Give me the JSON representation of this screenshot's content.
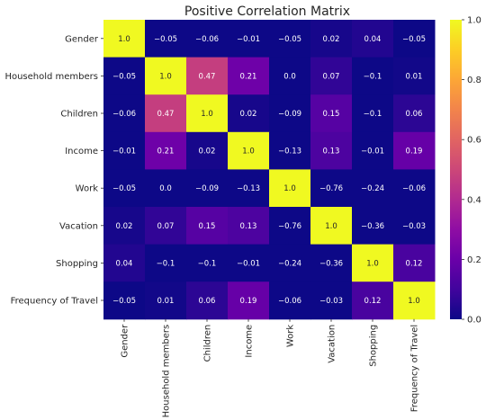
{
  "chart_data": {
    "type": "heatmap",
    "title": "Positive Correlation Matrix",
    "xlabel": "",
    "ylabel": "",
    "categories": [
      "Gender",
      "Household members",
      "Children",
      "Income",
      "Work",
      "Vacation",
      "Shopping",
      "Frequency of Travel"
    ],
    "values": [
      [
        1.0,
        -0.05,
        -0.06,
        -0.01,
        -0.05,
        0.02,
        0.04,
        -0.05
      ],
      [
        -0.05,
        1.0,
        0.47,
        0.21,
        0.0,
        0.07,
        -0.1,
        0.01
      ],
      [
        -0.06,
        0.47,
        1.0,
        0.02,
        -0.09,
        0.15,
        -0.1,
        0.06
      ],
      [
        -0.01,
        0.21,
        0.02,
        1.0,
        -0.13,
        0.13,
        -0.01,
        0.19
      ],
      [
        -0.05,
        0.0,
        -0.09,
        -0.13,
        1.0,
        -0.76,
        -0.24,
        -0.06
      ],
      [
        0.02,
        0.07,
        0.15,
        0.13,
        -0.76,
        1.0,
        -0.36,
        -0.03
      ],
      [
        0.04,
        -0.1,
        -0.1,
        -0.01,
        -0.24,
        -0.36,
        1.0,
        0.12
      ],
      [
        -0.05,
        0.01,
        0.06,
        0.19,
        -0.06,
        -0.03,
        0.12,
        1.0
      ]
    ],
    "colormap": "plasma",
    "vmin": 0.0,
    "vmax": 1.0,
    "colorbar_ticks": [
      0.0,
      0.2,
      0.4,
      0.6,
      0.8,
      1.0
    ],
    "grid": false,
    "legend": "colorbar-right"
  }
}
